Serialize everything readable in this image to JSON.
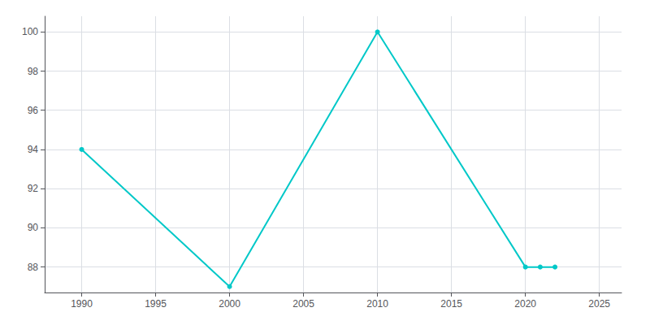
{
  "chart_data": {
    "type": "line",
    "x": [
      1990,
      2000,
      2010,
      2020,
      2021,
      2022
    ],
    "values": [
      94,
      87,
      100,
      88,
      88,
      88
    ],
    "color": "#00C8C8",
    "marker": "circle",
    "xlim": [
      1987.5,
      2026.5
    ],
    "ylim": [
      86.7,
      100.8
    ],
    "xticks": [
      1990,
      1995,
      2000,
      2005,
      2010,
      2015,
      2020,
      2025
    ],
    "yticks": [
      88,
      90,
      92,
      94,
      96,
      98,
      100
    ],
    "grid": true
  }
}
